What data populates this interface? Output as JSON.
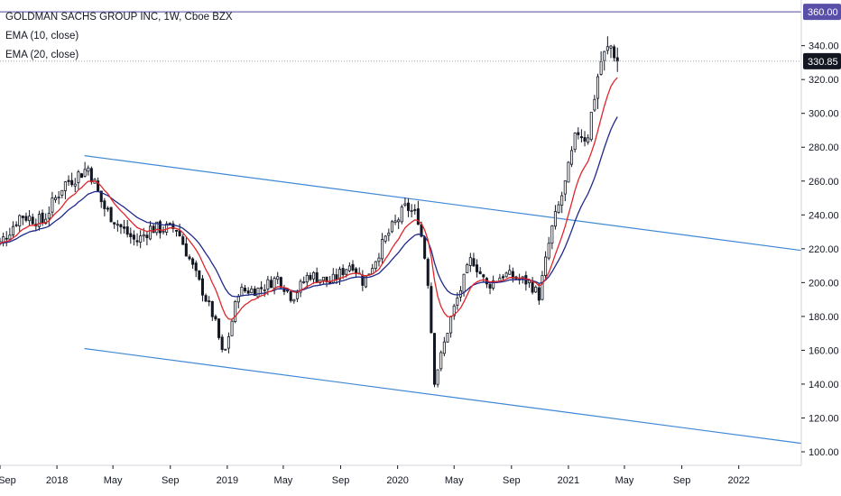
{
  "legend": {
    "title": "GOLDMAN SACHS GROUP INC, 1W, Cboe BZX",
    "ema10": "EMA (10, close)",
    "ema20": "EMA (20, close)"
  },
  "colors": {
    "up": "#ffffff",
    "down": "#131722",
    "wick": "#131722",
    "ema10": "#e0262b",
    "ema20": "#1f2a8a",
    "trendline": "#3f88d6",
    "hline": "#4b4a9e",
    "hline_badge": "#5a4fa8",
    "price_badge": "#131722"
  },
  "chart_data": {
    "type": "candlestick",
    "ylim": [
      92,
      367
    ],
    "x_range": [
      "2017-09-01",
      "2022-05-15"
    ],
    "x_ticks": [
      {
        "date": "2017-09-01",
        "label": "Sep"
      },
      {
        "date": "2018-01-01",
        "label": "2018"
      },
      {
        "date": "2018-05-01",
        "label": "May"
      },
      {
        "date": "2018-09-01",
        "label": "Sep"
      },
      {
        "date": "2019-01-01",
        "label": "2019"
      },
      {
        "date": "2019-05-01",
        "label": "May"
      },
      {
        "date": "2019-09-01",
        "label": "Sep"
      },
      {
        "date": "2020-01-01",
        "label": "2020"
      },
      {
        "date": "2020-05-01",
        "label": "May"
      },
      {
        "date": "2020-09-01",
        "label": "Sep"
      },
      {
        "date": "2021-01-01",
        "label": "2021"
      },
      {
        "date": "2021-05-01",
        "label": "May"
      },
      {
        "date": "2021-09-01",
        "label": "Sep"
      },
      {
        "date": "2022-01-01",
        "label": "2022"
      }
    ],
    "y_ticks": [
      "100.00",
      "120.00",
      "140.00",
      "160.00",
      "180.00",
      "200.00",
      "220.00",
      "240.00",
      "260.00",
      "280.00",
      "300.00",
      "320.00",
      "340.00"
    ],
    "horizontal_line": {
      "value": 360.0,
      "label": "360.00"
    },
    "last_price": {
      "value": 330.85,
      "label": "330.85"
    },
    "trendlines": [
      {
        "start": {
          "date": "2018-03-01",
          "value": 275
        },
        "end": {
          "date": "2022-05-15",
          "value": 219
        }
      },
      {
        "start": {
          "date": "2018-03-01",
          "value": 161
        },
        "end": {
          "date": "2022-05-15",
          "value": 105
        }
      }
    ],
    "anchors": [
      {
        "date": "2017-09-01",
        "value": 223
      },
      {
        "date": "2017-10-15",
        "value": 240
      },
      {
        "date": "2017-12-01",
        "value": 236
      },
      {
        "date": "2018-01-15",
        "value": 258
      },
      {
        "date": "2018-03-10",
        "value": 268
      },
      {
        "date": "2018-04-10",
        "value": 245
      },
      {
        "date": "2018-05-20",
        "value": 232
      },
      {
        "date": "2018-06-20",
        "value": 224
      },
      {
        "date": "2018-07-20",
        "value": 232
      },
      {
        "date": "2018-09-15",
        "value": 232
      },
      {
        "date": "2018-10-25",
        "value": 205
      },
      {
        "date": "2018-12-05",
        "value": 178
      },
      {
        "date": "2018-12-24",
        "value": 155
      },
      {
        "date": "2019-01-25",
        "value": 195
      },
      {
        "date": "2019-03-10",
        "value": 196
      },
      {
        "date": "2019-04-20",
        "value": 203
      },
      {
        "date": "2019-05-20",
        "value": 191
      },
      {
        "date": "2019-06-25",
        "value": 205
      },
      {
        "date": "2019-08-10",
        "value": 200
      },
      {
        "date": "2019-09-25",
        "value": 212
      },
      {
        "date": "2019-10-20",
        "value": 200
      },
      {
        "date": "2019-12-10",
        "value": 228
      },
      {
        "date": "2020-01-20",
        "value": 245
      },
      {
        "date": "2020-02-15",
        "value": 238
      },
      {
        "date": "2020-03-05",
        "value": 205
      },
      {
        "date": "2020-03-20",
        "value": 142
      },
      {
        "date": "2020-04-25",
        "value": 180
      },
      {
        "date": "2020-06-08",
        "value": 215
      },
      {
        "date": "2020-07-10",
        "value": 198
      },
      {
        "date": "2020-08-15",
        "value": 205
      },
      {
        "date": "2020-10-10",
        "value": 200
      },
      {
        "date": "2020-10-30",
        "value": 192
      },
      {
        "date": "2020-11-25",
        "value": 230
      },
      {
        "date": "2020-12-25",
        "value": 258
      },
      {
        "date": "2021-01-20",
        "value": 290
      },
      {
        "date": "2021-02-10",
        "value": 285
      },
      {
        "date": "2021-03-10",
        "value": 330
      },
      {
        "date": "2021-04-01",
        "value": 340
      },
      {
        "date": "2021-04-20",
        "value": 330.85
      }
    ]
  }
}
